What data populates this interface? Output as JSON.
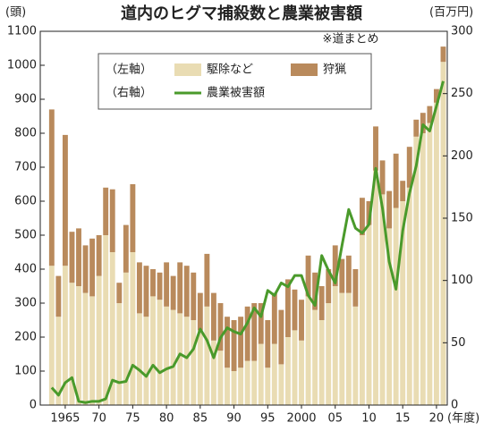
{
  "chart_data": {
    "type": "bar-line",
    "title": "道内のヒグマ捕殺数と農業被害額",
    "subtitle": "※道まとめ",
    "y_unit": "(頭)",
    "y2_unit": "(百万円)",
    "x_unit": "(年度)",
    "legend_left_label": "（左軸）",
    "legend_right_label": "（右軸）",
    "x": [
      1963,
      1964,
      1965,
      1966,
      1967,
      1968,
      1969,
      1970,
      1971,
      1972,
      1973,
      1974,
      1975,
      1976,
      1977,
      1978,
      1979,
      1980,
      1981,
      1982,
      1983,
      1984,
      1985,
      1986,
      1987,
      1988,
      1989,
      1990,
      1991,
      1992,
      1993,
      1994,
      1995,
      1996,
      1997,
      1998,
      1999,
      2000,
      2001,
      2002,
      2003,
      2004,
      2005,
      2006,
      2007,
      2008,
      2009,
      2010,
      2011,
      2012,
      2013,
      2014,
      2015,
      2016,
      2017,
      2018,
      2019,
      2020,
      2021
    ],
    "xlim": [
      1961.3,
      2021.6
    ],
    "xticks": [
      1965,
      {
        "value": 1970,
        "label": "70"
      },
      {
        "value": 1975,
        "label": "75"
      },
      {
        "value": 1980,
        "label": "80"
      },
      {
        "value": 1985,
        "label": "85"
      },
      {
        "value": 1990,
        "label": "90"
      },
      {
        "value": 1995,
        "label": "95"
      },
      2000,
      {
        "value": 2005,
        "label": "05"
      },
      {
        "value": 2010,
        "label": "10"
      },
      {
        "value": 2015,
        "label": "15"
      },
      {
        "value": 2020,
        "label": "20"
      }
    ],
    "ylim": [
      0,
      1100
    ],
    "yticks": [
      0,
      100,
      200,
      300,
      400,
      500,
      600,
      700,
      800,
      900,
      1000,
      1100
    ],
    "y2lim": [
      0,
      300
    ],
    "y2ticks": [
      0,
      50,
      100,
      150,
      200,
      250,
      300
    ],
    "series": [
      {
        "name": "駆除など",
        "color": "#e9dcb3",
        "kind": "bar",
        "values": [
          410,
          260,
          410,
          360,
          350,
          330,
          320,
          380,
          500,
          450,
          300,
          390,
          450,
          270,
          260,
          320,
          310,
          290,
          280,
          270,
          260,
          250,
          220,
          290,
          190,
          160,
          110,
          100,
          110,
          130,
          130,
          180,
          110,
          180,
          120,
          200,
          220,
          190,
          320,
          280,
          250,
          300,
          350,
          330,
          330,
          290,
          500,
          530,
          690,
          620,
          520,
          580,
          600,
          640,
          790,
          800,
          830,
          890,
          1010
        ]
      },
      {
        "name": "狩猟",
        "color": "#b98a5c",
        "kind": "bar",
        "values": [
          460,
          120,
          385,
          150,
          170,
          140,
          170,
          120,
          140,
          185,
          60,
          140,
          200,
          150,
          150,
          80,
          80,
          130,
          100,
          150,
          150,
          140,
          110,
          155,
          140,
          140,
          150,
          150,
          150,
          160,
          170,
          120,
          140,
          150,
          160,
          170,
          120,
          120,
          120,
          110,
          100,
          100,
          120,
          100,
          110,
          110,
          110,
          70,
          130,
          100,
          110,
          160,
          60,
          120,
          50,
          60,
          50,
          40,
          45
        ]
      },
      {
        "name": "農業被害額",
        "color": "#4a9a2b",
        "kind": "line",
        "axis": "y2",
        "values": [
          14,
          8,
          18,
          22,
          3,
          2,
          3,
          3,
          5,
          20,
          18,
          19,
          32,
          28,
          23,
          32,
          26,
          29,
          31,
          41,
          38,
          45,
          61,
          52,
          38,
          54,
          62,
          59,
          57,
          66,
          78,
          71,
          92,
          88,
          98,
          95,
          104,
          104,
          88,
          80,
          120,
          108,
          98,
          128,
          157,
          142,
          138,
          145,
          190,
          158,
          115,
          93,
          140,
          170,
          192,
          225,
          220,
          240,
          260
        ]
      }
    ]
  }
}
